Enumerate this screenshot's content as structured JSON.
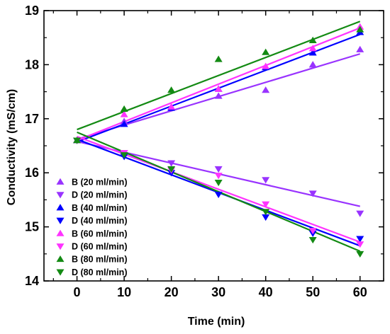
{
  "chart_data": {
    "type": "scatter",
    "xlabel": "Time (min)",
    "ylabel": "Conductivity (mS/cm)",
    "xlim": [
      -7,
      65
    ],
    "ylim": [
      14,
      19
    ],
    "x_ticks": [
      "0",
      "10",
      "20",
      "30",
      "40",
      "50",
      "60"
    ],
    "y_ticks": [
      "14",
      "15",
      "16",
      "17",
      "18",
      "19"
    ],
    "legend_position": "bottom-left",
    "grid": false,
    "x": [
      0,
      10,
      20,
      30,
      40,
      50,
      60
    ],
    "series": [
      {
        "name": "B (20 ml/min)",
        "color": "#9933FF",
        "marker": "triangle-up",
        "values": [
          16.6,
          16.95,
          17.2,
          17.42,
          17.53,
          18.0,
          18.28
        ],
        "fit": [
          16.62,
          18.2
        ]
      },
      {
        "name": "D (20 ml/min)",
        "color": "#9933FF",
        "marker": "triangle-down",
        "values": [
          16.6,
          16.37,
          16.18,
          16.07,
          15.87,
          15.62,
          15.25
        ],
        "fit": [
          16.58,
          15.38
        ]
      },
      {
        "name": "B (40 ml/min)",
        "color": "#0000FF",
        "marker": "triangle-up",
        "values": [
          16.6,
          16.9,
          17.2,
          17.55,
          17.95,
          18.22,
          18.6
        ],
        "fit": [
          16.57,
          18.56
        ]
      },
      {
        "name": "D (40 ml/min)",
        "color": "#0000FF",
        "marker": "triangle-down",
        "values": [
          16.6,
          16.3,
          16.0,
          15.6,
          15.18,
          14.88,
          14.78
        ],
        "fit": [
          16.62,
          14.65
        ]
      },
      {
        "name": "B (60 ml/min)",
        "color": "#FF33FF",
        "marker": "triangle-up",
        "values": [
          16.6,
          17.08,
          17.22,
          17.55,
          17.97,
          18.3,
          18.7
        ],
        "fit": [
          16.6,
          18.68
        ]
      },
      {
        "name": "D (60 ml/min)",
        "color": "#FF33FF",
        "marker": "triangle-down",
        "values": [
          16.6,
          16.37,
          16.05,
          15.95,
          15.42,
          14.93,
          14.68
        ],
        "fit": [
          16.67,
          14.72
        ]
      },
      {
        "name": "B (80 ml/min)",
        "color": "#138A13",
        "marker": "triangle-up",
        "values": [
          16.6,
          17.18,
          17.53,
          18.1,
          18.23,
          18.45,
          18.65
        ],
        "fit": [
          16.8,
          18.8
        ]
      },
      {
        "name": "D (80 ml/min)",
        "color": "#138A13",
        "marker": "triangle-down",
        "values": [
          16.6,
          16.33,
          16.07,
          15.82,
          15.28,
          14.76,
          14.5
        ],
        "fit": [
          16.75,
          14.55
        ]
      }
    ]
  }
}
